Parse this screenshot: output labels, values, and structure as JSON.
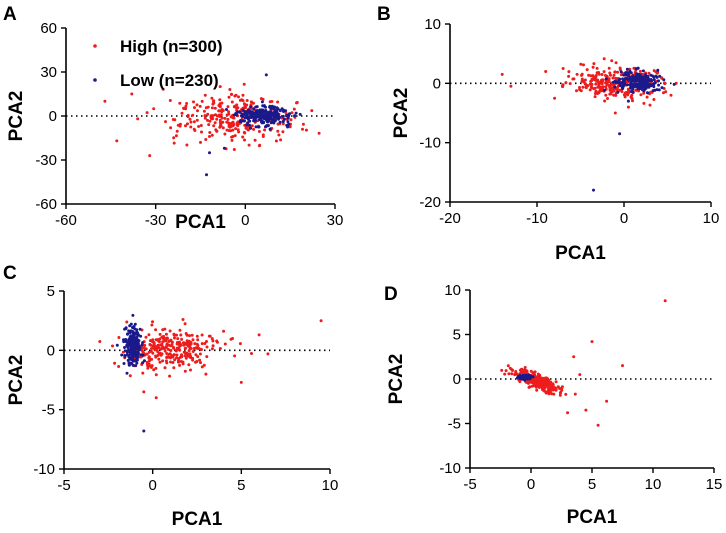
{
  "colors": {
    "high": "#ee1c1c",
    "low": "#1a1a8c",
    "axis": "#000000",
    "background": "#ffffff"
  },
  "legend": {
    "panel": "A",
    "entries": [
      {
        "label": "High (n=300)",
        "color": "#ee1c1c",
        "series": "High"
      },
      {
        "label": "Low (n=230)",
        "color": "#1a1a8c",
        "series": "Low"
      }
    ]
  },
  "chart_data": [
    {
      "panel": "A",
      "type": "scatter",
      "xlabel": "PCA1",
      "ylabel": "PCA2",
      "xlim": [
        -60,
        30
      ],
      "ylim": [
        -60,
        60
      ],
      "xticks": [
        -60,
        -30,
        0,
        30
      ],
      "yticks": [
        -60,
        -30,
        0,
        30,
        60
      ],
      "reference_line_y": 0,
      "series": [
        {
          "name": "High",
          "n": 300,
          "center": [
            -3,
            -1
          ],
          "spread": [
            10,
            8
          ],
          "outliers": [
            [
              -47,
              10
            ],
            [
              -43,
              -17
            ],
            [
              -32,
              -27
            ],
            [
              -38,
              15
            ],
            [
              -25,
              -8
            ],
            [
              -20,
              5
            ],
            [
              -36,
              -2
            ],
            [
              -15,
              -18
            ],
            [
              -12,
              -14
            ]
          ]
        },
        {
          "name": "Low",
          "n": 230,
          "center": [
            6,
            0
          ],
          "spread": [
            4.5,
            3.5
          ],
          "outliers": [
            [
              7,
              28
            ],
            [
              -13,
              -40
            ],
            [
              -7,
              -22
            ],
            [
              -12,
              -25
            ]
          ]
        }
      ]
    },
    {
      "panel": "B",
      "type": "scatter",
      "xlabel": "PCA1",
      "ylabel": "PCA2",
      "xlim": [
        -20,
        10
      ],
      "ylim": [
        -20,
        10
      ],
      "xticks": [
        -20,
        -10,
        0,
        10
      ],
      "yticks": [
        -20,
        -10,
        0,
        10
      ],
      "reference_line_y": 0,
      "series": [
        {
          "name": "High",
          "n": 300,
          "center": [
            -1,
            0
          ],
          "spread": [
            2.6,
            1.4
          ],
          "outliers": [
            [
              -14,
              1.5
            ],
            [
              -13,
              -0.5
            ],
            [
              -9,
              2
            ],
            [
              -7,
              2.5
            ],
            [
              -1,
              -5
            ],
            [
              0.5,
              -4
            ]
          ]
        },
        {
          "name": "Low",
          "n": 230,
          "center": [
            1.6,
            0.3
          ],
          "spread": [
            1.2,
            0.8
          ],
          "outliers": [
            [
              -3.5,
              -18
            ],
            [
              -0.5,
              -8.5
            ],
            [
              0.5,
              -3
            ]
          ]
        }
      ]
    },
    {
      "panel": "C",
      "type": "scatter",
      "xlabel": "PCA1",
      "ylabel": "PCA2",
      "xlim": [
        -5,
        10
      ],
      "ylim": [
        -10,
        5
      ],
      "xticks": [
        -5,
        0,
        5,
        10
      ],
      "yticks": [
        -10,
        -5,
        0,
        5
      ],
      "reference_line_y": 0,
      "series": [
        {
          "name": "High",
          "n": 300,
          "center": [
            1,
            0.2
          ],
          "spread": [
            1.3,
            0.9
          ],
          "outliers": [
            [
              9.5,
              2.5
            ],
            [
              6.5,
              -0.3
            ],
            [
              5,
              -2.7
            ],
            [
              4.5,
              1
            ],
            [
              6,
              1.3
            ],
            [
              3,
              -2
            ],
            [
              0.2,
              -4
            ],
            [
              -0.5,
              -3.5
            ]
          ]
        },
        {
          "name": "Low",
          "n": 230,
          "center": [
            -1.1,
            0.3
          ],
          "spread": [
            0.25,
            0.8
          ],
          "outliers": [
            [
              -0.5,
              -6.8
            ],
            [
              -1.5,
              1.9
            ],
            [
              -1,
              1.8
            ]
          ]
        }
      ]
    },
    {
      "panel": "D",
      "type": "scatter",
      "xlabel": "PCA1",
      "ylabel": "PCA2",
      "xlim": [
        -5,
        15
      ],
      "ylim": [
        -10,
        10
      ],
      "xticks": [
        -5,
        0,
        5,
        10,
        15
      ],
      "yticks": [
        -10,
        -5,
        0,
        5,
        10
      ],
      "reference_line_y": 0,
      "series": [
        {
          "name": "High",
          "n": 300,
          "center": [
            0.5,
            -0.2
          ],
          "spread": [
            0.9,
            0.7
          ],
          "outliers": [
            [
              11,
              8.8
            ],
            [
              5,
              4.2
            ],
            [
              6.2,
              -2.5
            ],
            [
              7.5,
              1.5
            ],
            [
              5.5,
              -5.2
            ],
            [
              4.5,
              -3.5
            ],
            [
              3,
              -3.8
            ],
            [
              4,
              0.5
            ],
            [
              3.5,
              2.5
            ]
          ]
        },
        {
          "name": "Low",
          "n": 230,
          "center": [
            -0.5,
            0.2
          ],
          "spread": [
            0.2,
            0.1
          ],
          "outliers": []
        }
      ]
    }
  ]
}
